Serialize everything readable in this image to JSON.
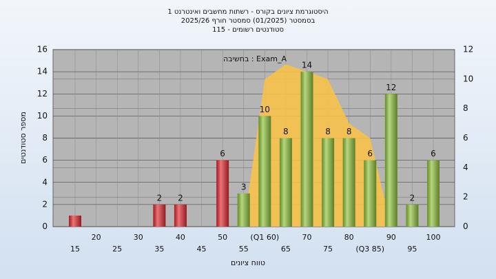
{
  "chart_data": {
    "type": "bar",
    "title_lines": [
      "היסטוגרמת ציונים בקורס - רשתות מחשבים ואינטרנט 1",
      "בסמסטר (01/2025) סמסטר חורף 2025/26",
      "סטודנטים רשומים - 115"
    ],
    "annotation": "Exam_A : בחשיבה",
    "x_label": "טווח ציונים",
    "y_label": "מספר סטודנטים",
    "categories": [
      "15",
      "20",
      "25",
      "30",
      "35",
      "40",
      "45",
      "50",
      "55",
      "(Q1 60)",
      "65",
      "70",
      "75",
      "80",
      "(Q3 85)",
      "90",
      "95",
      "100"
    ],
    "values": [
      1,
      0,
      0,
      0,
      2,
      2,
      0,
      6,
      3,
      10,
      8,
      14,
      8,
      8,
      6,
      12,
      2,
      6
    ],
    "value_labels": [
      null,
      null,
      null,
      null,
      "2",
      "2",
      null,
      "6",
      "3",
      "10",
      "8",
      "14",
      "8",
      "8",
      "6",
      "12",
      "2",
      "6"
    ],
    "bar_colors": [
      "#e02a30",
      "#e02a30",
      "#e02a30",
      "#e02a30",
      "#e02a30",
      "#e02a30",
      "#e02a30",
      "#e02a30",
      "#8fc23c",
      "#8fc23c",
      "#8fc23c",
      "#8fc23c",
      "#8fc23c",
      "#8fc23c",
      "#8fc23c",
      "#8fc23c",
      "#8fc23c",
      "#8fc23c"
    ],
    "area": {
      "color": "#f7c24a",
      "axis": "y2",
      "values": [
        null,
        null,
        null,
        null,
        null,
        null,
        null,
        null,
        0,
        10,
        11,
        10.5,
        10,
        7,
        6,
        0,
        null,
        null
      ]
    },
    "ylim": [
      0,
      16
    ],
    "yticks": [
      0,
      2,
      4,
      6,
      8,
      10,
      12,
      14,
      16
    ],
    "y2lim": [
      0,
      12
    ],
    "y2ticks": [
      0,
      2,
      4,
      6,
      8,
      10,
      12
    ],
    "grid": true
  }
}
